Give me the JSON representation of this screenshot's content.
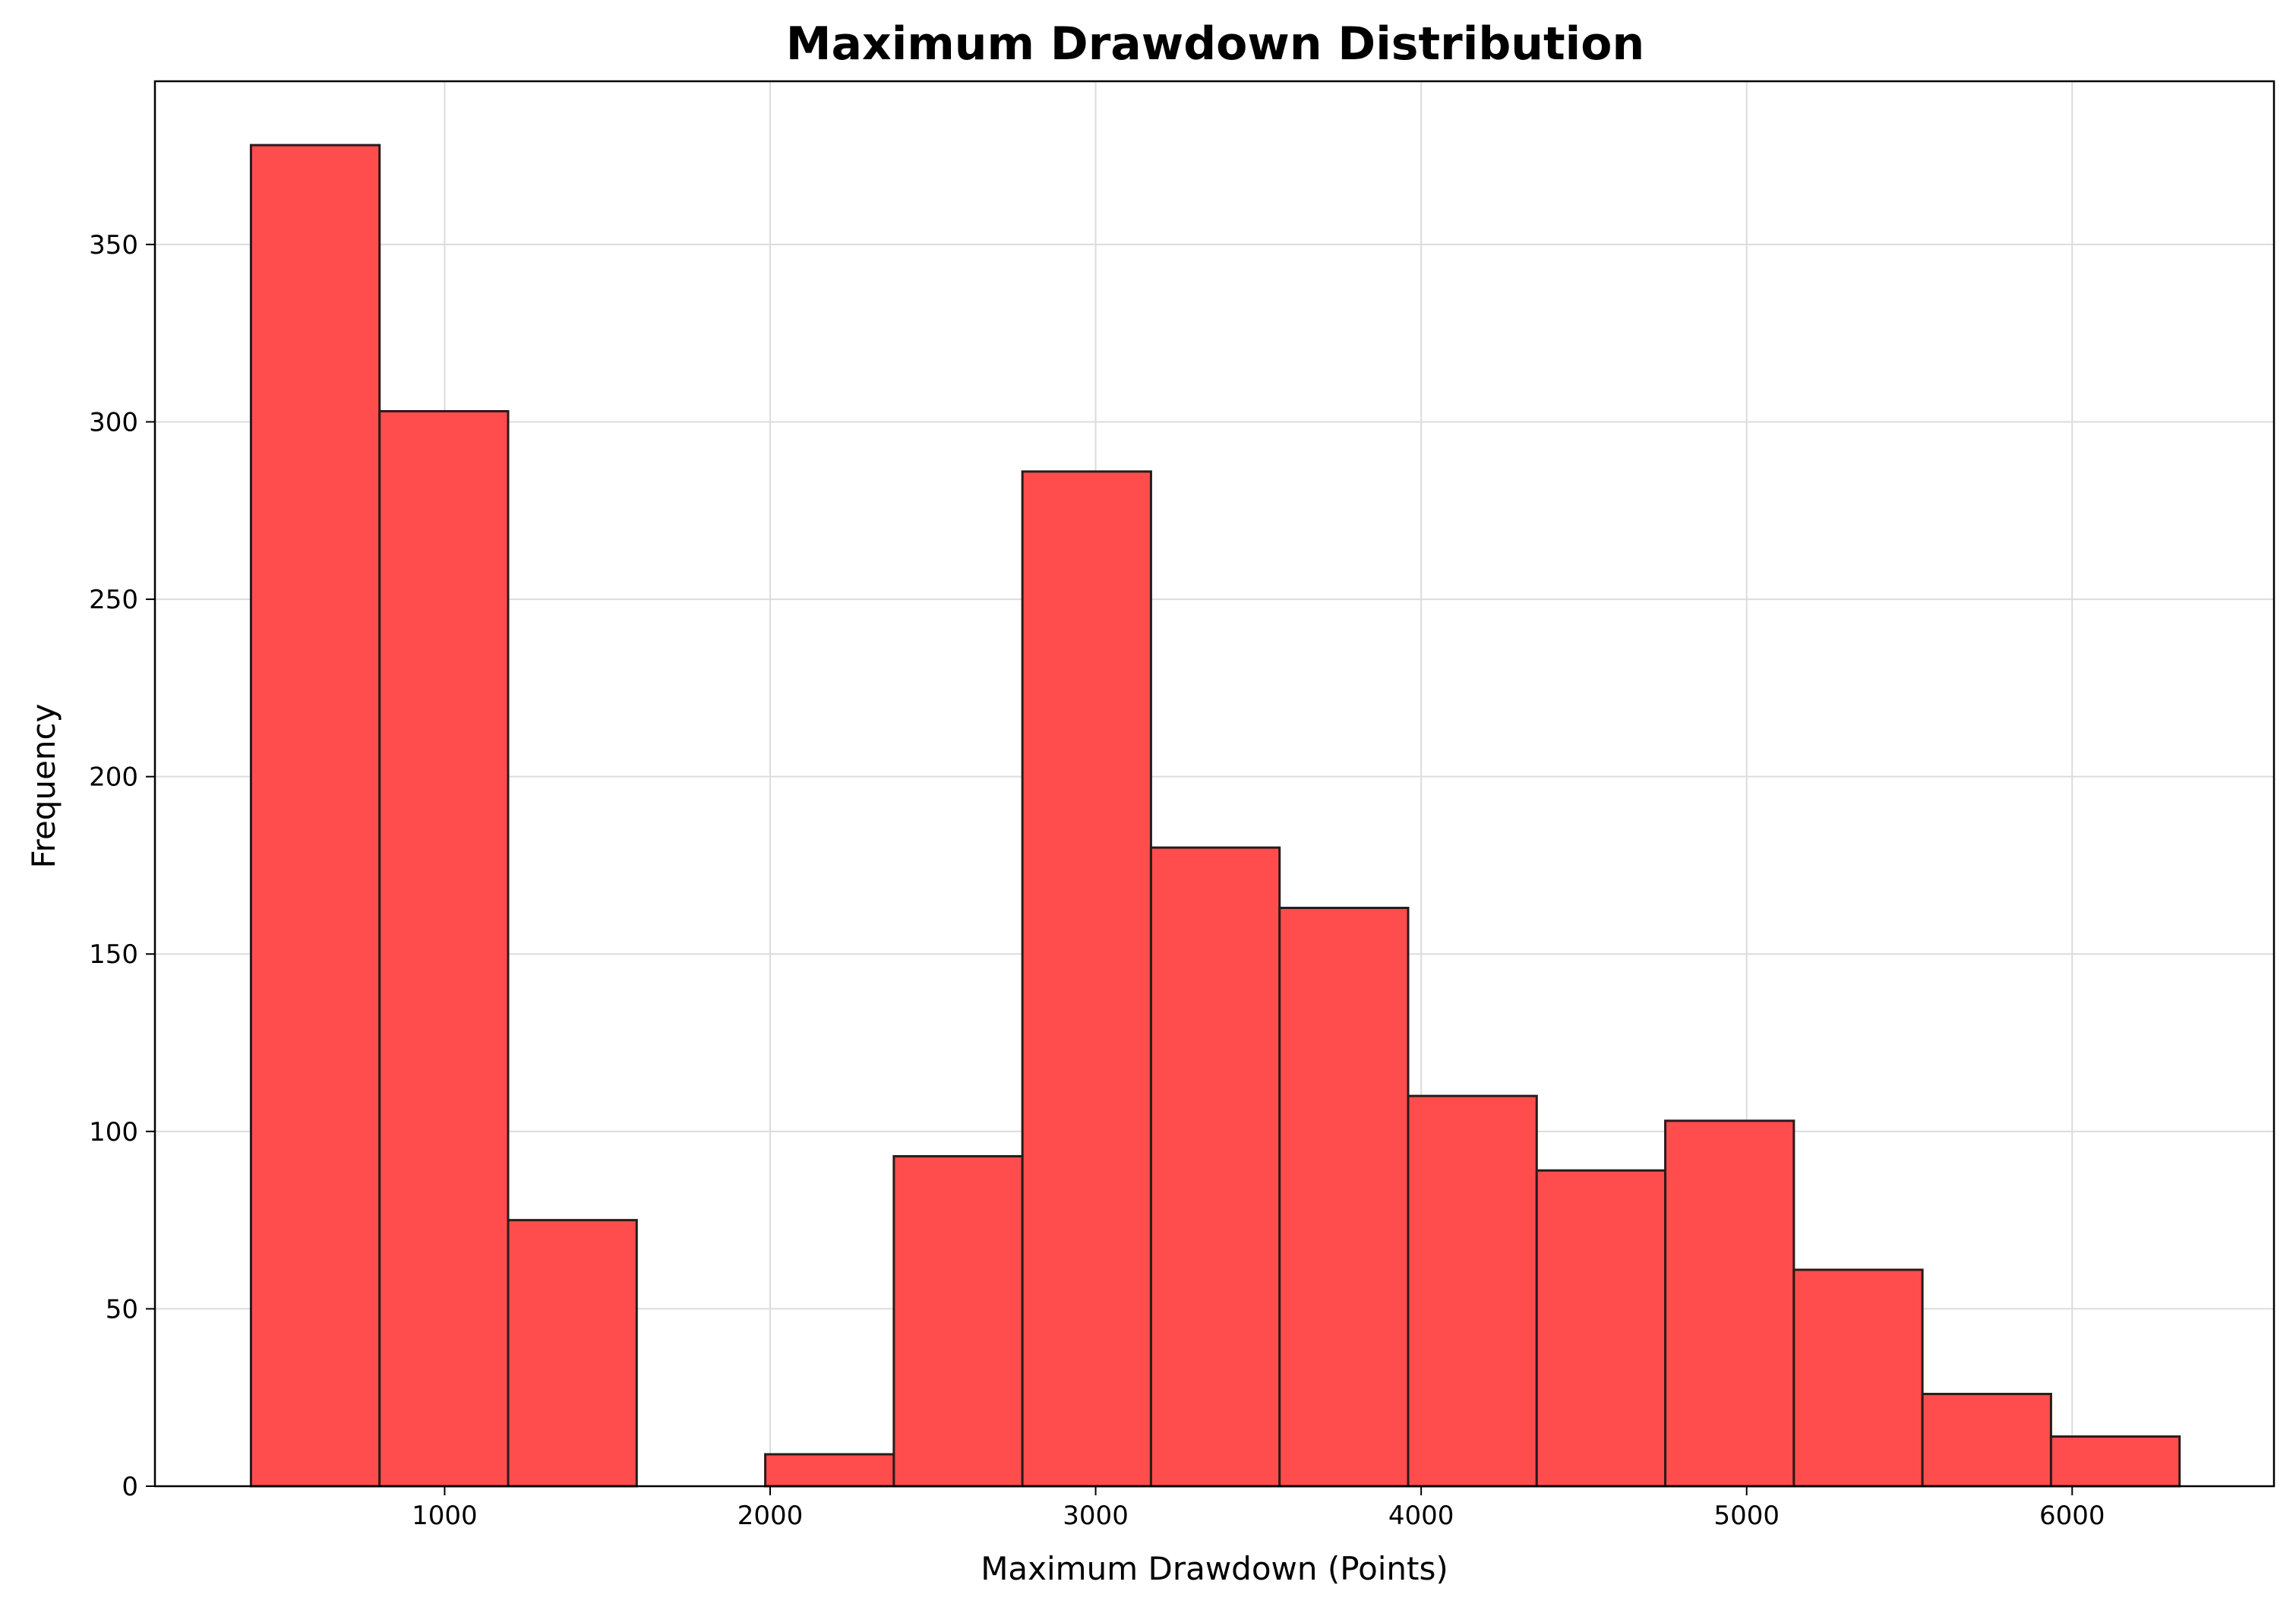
{
  "chart_data": {
    "type": "bar",
    "title": "Maximum Drawdown Distribution",
    "xlabel": "Maximum Drawdown (Points)",
    "ylabel": "Frequency",
    "xlim": [
      110,
      6620
    ],
    "ylim": [
      0,
      396
    ],
    "xticks": [
      1000,
      2000,
      3000,
      4000,
      5000,
      6000
    ],
    "yticks": [
      0,
      50,
      100,
      150,
      200,
      250,
      300,
      350
    ],
    "grid": true,
    "bin_edges": [
      405,
      800,
      1195,
      1590,
      1985,
      2380,
      2775,
      3170,
      3565,
      3960,
      4355,
      4750,
      5145,
      5540,
      5935,
      6330
    ],
    "values": [
      378,
      303,
      75,
      0,
      9,
      93,
      286,
      180,
      163,
      110,
      89,
      103,
      61,
      26,
      14
    ],
    "colors": {
      "bar_fill": "#ff4d4d",
      "bar_edge": "#2b1a1a",
      "grid": "#dcdcdc"
    }
  }
}
